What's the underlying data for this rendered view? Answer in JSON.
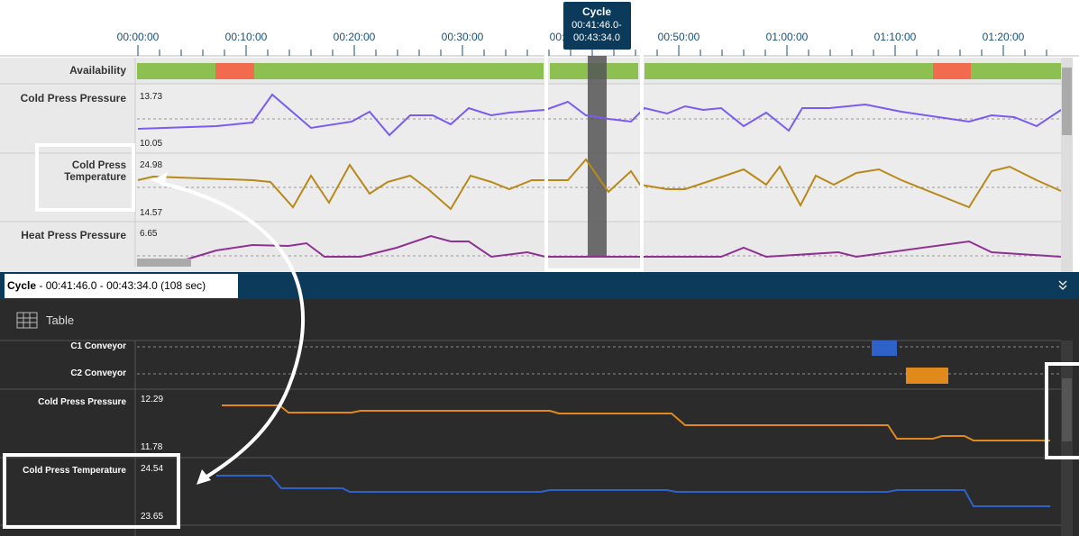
{
  "time_axis": {
    "ticks": [
      "00:00:00",
      "00:10:00",
      "00:20:00",
      "00:30:00",
      "00:40:00",
      "00:50:00",
      "01:00:00",
      "01:10:00",
      "01:20:00"
    ]
  },
  "tooltip": {
    "title": "Cycle",
    "lines": [
      "00:41:46.0-",
      "00:43:34.0"
    ]
  },
  "timeline_rows": [
    {
      "label": "Availability"
    },
    {
      "label": "Cold Press Pressure",
      "max": "13.73",
      "min": "10.05"
    },
    {
      "label": "Cold Press Temperature",
      "max": "24.98",
      "min": "14.57"
    },
    {
      "label": "Heat Press Pressure",
      "max": "6.65"
    }
  ],
  "detail_panel": {
    "header": {
      "title": "Cycle",
      "range": "- 00:41:46.0 - 00:43:34.0 (108 sec)"
    },
    "view_toggle": "Table",
    "rows": [
      {
        "label": "C1 Conveyor"
      },
      {
        "label": "C2 Conveyor"
      },
      {
        "label": "Cold Press Pressure",
        "max": "12.29",
        "min": "11.78"
      },
      {
        "label": "Cold Press Temperature",
        "max": "24.54",
        "min": "23.65"
      }
    ]
  }
}
